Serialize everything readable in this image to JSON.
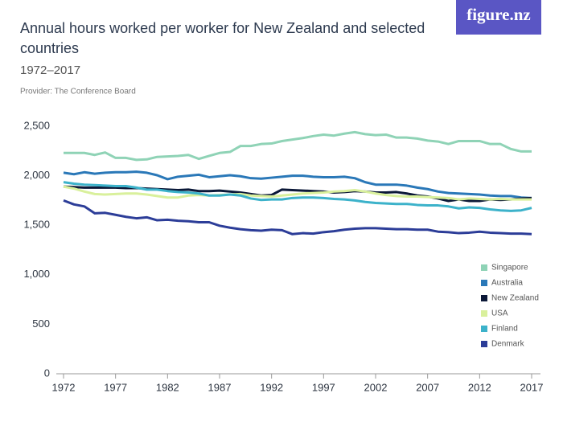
{
  "brand": "figure.nz",
  "chart_data": {
    "type": "line",
    "title": "Annual hours worked per worker for New Zealand and selected countries",
    "subtitle": "1972–2017",
    "provider": "Provider: The Conference Board",
    "x": [
      1972,
      1973,
      1974,
      1975,
      1976,
      1977,
      1978,
      1979,
      1980,
      1981,
      1982,
      1983,
      1984,
      1985,
      1986,
      1987,
      1988,
      1989,
      1990,
      1991,
      1992,
      1993,
      1994,
      1995,
      1996,
      1997,
      1998,
      1999,
      2000,
      2001,
      2002,
      2003,
      2004,
      2005,
      2006,
      2007,
      2008,
      2009,
      2010,
      2011,
      2012,
      2013,
      2014,
      2015,
      2016,
      2017
    ],
    "xlim": [
      1972,
      2017
    ],
    "xticks": [
      1972,
      1977,
      1982,
      1987,
      1992,
      1997,
      2002,
      2007,
      2012,
      2017
    ],
    "ylim": [
      0,
      2500
    ],
    "yticks": [
      0,
      500,
      {
        "value": 1000,
        "label": "1,000"
      },
      {
        "value": 1500,
        "label": "1,500"
      },
      {
        "value": 2000,
        "label": "2,000"
      },
      {
        "value": 2500,
        "label": "2,500"
      }
    ],
    "grid": false,
    "series": [
      {
        "name": "Singapore",
        "color": "#8fd3b6",
        "values": [
          2230,
          2230,
          2230,
          2210,
          2235,
          2180,
          2180,
          2160,
          2165,
          2190,
          2195,
          2200,
          2210,
          2170,
          2200,
          2230,
          2240,
          2300,
          2300,
          2320,
          2325,
          2350,
          2365,
          2380,
          2400,
          2415,
          2405,
          2425,
          2440,
          2420,
          2410,
          2415,
          2385,
          2385,
          2375,
          2355,
          2345,
          2320,
          2350,
          2350,
          2350,
          2320,
          2320,
          2270,
          2245,
          2245
        ]
      },
      {
        "name": "Australia",
        "color": "#2a78b8",
        "values": [
          2030,
          2015,
          2035,
          2020,
          2030,
          2035,
          2035,
          2040,
          2030,
          2005,
          1965,
          1990,
          2000,
          2010,
          1985,
          1995,
          2005,
          1995,
          1975,
          1970,
          1980,
          1990,
          2000,
          2000,
          1990,
          1985,
          1985,
          1990,
          1975,
          1935,
          1910,
          1910,
          1910,
          1900,
          1880,
          1865,
          1840,
          1825,
          1820,
          1815,
          1810,
          1800,
          1795,
          1795,
          1780,
          1775
        ]
      },
      {
        "name": "New Zealand",
        "color": "#0b1838",
        "values": [
          1890,
          1885,
          1880,
          1880,
          1880,
          1880,
          1875,
          1875,
          1870,
          1865,
          1860,
          1855,
          1860,
          1845,
          1845,
          1850,
          1840,
          1830,
          1815,
          1800,
          1805,
          1860,
          1855,
          1850,
          1845,
          1840,
          1830,
          1835,
          1845,
          1840,
          1830,
          1830,
          1835,
          1820,
          1800,
          1790,
          1770,
          1745,
          1760,
          1745,
          1745,
          1760,
          1755,
          1760,
          1770,
          1775
        ]
      },
      {
        "name": "USA",
        "color": "#d9f09c",
        "values": [
          1890,
          1870,
          1840,
          1815,
          1810,
          1815,
          1820,
          1820,
          1810,
          1795,
          1780,
          1780,
          1800,
          1805,
          1800,
          1805,
          1810,
          1815,
          1800,
          1795,
          1790,
          1800,
          1810,
          1820,
          1825,
          1830,
          1840,
          1845,
          1855,
          1840,
          1820,
          1805,
          1795,
          1790,
          1790,
          1785,
          1780,
          1775,
          1760,
          1770,
          1765,
          1760,
          1765,
          1760,
          1760,
          1760
        ]
      },
      {
        "name": "Finland",
        "color": "#3cb2ca",
        "values": [
          1935,
          1920,
          1910,
          1905,
          1900,
          1895,
          1895,
          1880,
          1860,
          1860,
          1845,
          1835,
          1830,
          1820,
          1800,
          1800,
          1810,
          1800,
          1770,
          1755,
          1760,
          1760,
          1775,
          1780,
          1780,
          1775,
          1765,
          1760,
          1750,
          1735,
          1725,
          1720,
          1715,
          1715,
          1705,
          1700,
          1700,
          1690,
          1670,
          1680,
          1675,
          1660,
          1650,
          1645,
          1650,
          1675
        ]
      },
      {
        "name": "Denmark",
        "color": "#2c3d98",
        "values": [
          1750,
          1710,
          1690,
          1620,
          1625,
          1605,
          1585,
          1570,
          1580,
          1550,
          1555,
          1545,
          1540,
          1530,
          1530,
          1495,
          1475,
          1460,
          1450,
          1445,
          1455,
          1450,
          1410,
          1420,
          1415,
          1430,
          1440,
          1455,
          1465,
          1470,
          1470,
          1465,
          1460,
          1460,
          1455,
          1455,
          1435,
          1430,
          1420,
          1425,
          1435,
          1425,
          1420,
          1415,
          1415,
          1410
        ]
      }
    ]
  }
}
